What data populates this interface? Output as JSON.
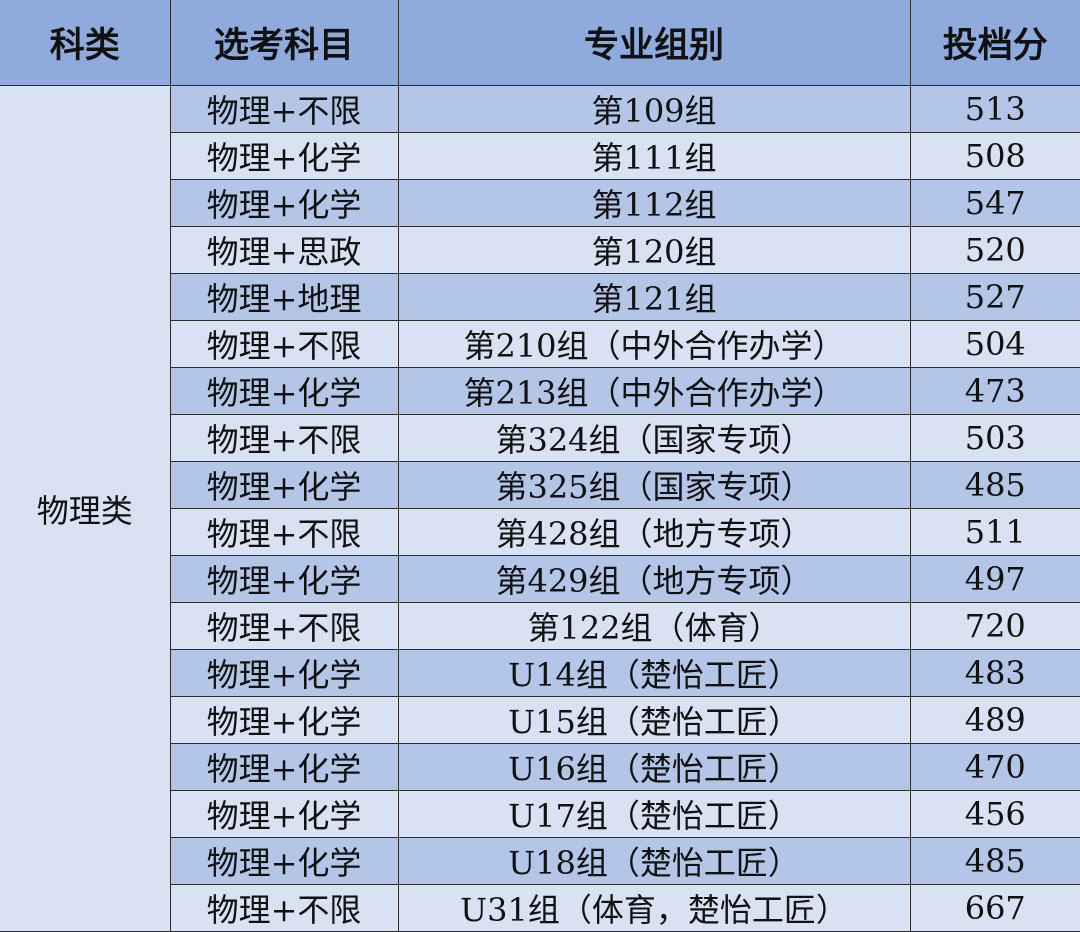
{
  "header": {
    "category": "科类",
    "subjects": "选考科目",
    "group": "专业组别",
    "score": "投档分"
  },
  "colors": {
    "header": "#8faadc",
    "row_dark": "#b4c6e7",
    "row_light": "#d9e2f3",
    "border": "#2b2b2b"
  },
  "category": "物理类",
  "rows": [
    {
      "subjects": "物理+不限",
      "group": "第109组",
      "score": "513"
    },
    {
      "subjects": "物理+化学",
      "group": "第111组",
      "score": "508"
    },
    {
      "subjects": "物理+化学",
      "group": "第112组",
      "score": "547"
    },
    {
      "subjects": "物理+思政",
      "group": "第120组",
      "score": "520"
    },
    {
      "subjects": "物理+地理",
      "group": "第121组",
      "score": "527"
    },
    {
      "subjects": "物理+不限",
      "group": "第210组（中外合作办学）",
      "score": "504"
    },
    {
      "subjects": "物理+化学",
      "group": "第213组（中外合作办学）",
      "score": "473"
    },
    {
      "subjects": "物理+不限",
      "group": "第324组（国家专项）",
      "score": "503"
    },
    {
      "subjects": "物理+化学",
      "group": "第325组（国家专项）",
      "score": "485"
    },
    {
      "subjects": "物理+不限",
      "group": "第428组（地方专项）",
      "score": "511"
    },
    {
      "subjects": "物理+化学",
      "group": "第429组（地方专项）",
      "score": "497"
    },
    {
      "subjects": "物理+不限",
      "group": "第122组（体育）",
      "score": "720"
    },
    {
      "subjects": "物理+化学",
      "group": "U14组（楚怡工匠）",
      "score": "483"
    },
    {
      "subjects": "物理+化学",
      "group": "U15组（楚怡工匠）",
      "score": "489"
    },
    {
      "subjects": "物理+化学",
      "group": "U16组（楚怡工匠）",
      "score": "470"
    },
    {
      "subjects": "物理+化学",
      "group": "U17组（楚怡工匠）",
      "score": "456"
    },
    {
      "subjects": "物理+化学",
      "group": "U18组（楚怡工匠）",
      "score": "485"
    },
    {
      "subjects": "物理+不限",
      "group": "U31组（体育，楚怡工匠）",
      "score": "667"
    }
  ]
}
